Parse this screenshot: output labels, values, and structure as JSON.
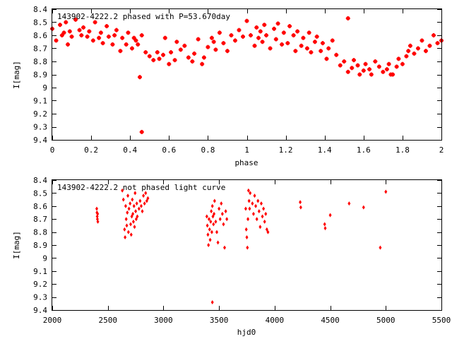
{
  "colors": {
    "marker": "#ff0000",
    "axis": "#000000",
    "background": "#ffffff"
  },
  "chart_data": [
    {
      "type": "scatter",
      "title": "143902-4222.2 phased with P=53.670day",
      "xlabel": "phase",
      "ylabel": "I[mag]",
      "xlim": [
        0,
        2
      ],
      "ylim": [
        8.4,
        9.4
      ],
      "y_inverted": true,
      "grid": false,
      "xticks": [
        0,
        0.2,
        0.4,
        0.6,
        0.8,
        1,
        1.2,
        1.4,
        1.6,
        1.8,
        2
      ],
      "xtick_labels": [
        "0",
        "0.2",
        "0.4",
        "0.6",
        "0.8",
        "1",
        "1.2",
        "1.4",
        "1.6",
        "1.8",
        "2"
      ],
      "yticks": [
        8.4,
        8.5,
        8.6,
        8.7,
        8.8,
        8.9,
        9,
        9.1,
        9.2,
        9.3,
        9.4
      ],
      "ytick_labels": [
        "8.4",
        "8.5",
        "8.6",
        "8.7",
        "8.8",
        "8.9",
        "9",
        "9.1",
        "9.2",
        "9.3",
        "9.4"
      ],
      "marker": "plus",
      "series": [
        {
          "x": [
            0.0,
            0.02,
            0.04,
            0.05,
            0.06,
            0.07,
            0.08,
            0.09,
            0.1,
            0.12,
            0.14,
            0.15,
            0.16,
            0.18,
            0.19,
            0.21,
            0.22,
            0.24,
            0.25,
            0.26,
            0.28,
            0.29,
            0.31,
            0.32,
            0.33,
            0.35,
            0.36,
            0.38,
            0.39,
            0.41,
            0.42,
            0.43,
            0.44,
            0.46,
            0.48,
            0.5,
            0.52,
            0.54,
            0.55,
            0.57,
            0.58,
            0.6,
            0.61,
            0.63,
            0.64,
            0.66,
            0.68,
            0.7,
            0.72,
            0.73,
            0.75,
            0.77,
            0.78,
            0.8,
            0.82,
            0.83,
            0.84,
            0.86,
            0.88,
            0.9,
            0.92,
            0.94,
            0.96,
            0.98,
            1.0,
            1.02,
            1.04,
            1.05,
            1.06,
            1.07,
            1.08,
            1.09,
            1.1,
            1.12,
            1.14,
            1.15,
            1.16,
            1.18,
            1.19,
            1.21,
            1.22,
            1.24,
            1.25,
            1.26,
            1.28,
            1.29,
            1.31,
            1.32,
            1.33,
            1.35,
            1.36,
            1.38,
            1.39,
            1.41,
            1.42,
            1.44,
            1.46,
            1.48,
            1.5,
            1.52,
            1.54,
            1.55,
            1.57,
            1.58,
            1.6,
            1.61,
            1.63,
            1.64,
            1.66,
            1.68,
            1.7,
            1.72,
            1.73,
            1.75,
            1.77,
            1.78,
            1.8,
            1.82,
            1.83,
            1.84,
            1.86,
            1.88,
            1.9,
            1.92,
            1.94,
            1.96,
            1.98,
            2.0,
            0.45,
            0.46,
            1.52,
            1.74
          ],
          "y": [
            8.55,
            8.64,
            8.52,
            8.6,
            8.58,
            8.5,
            8.67,
            8.57,
            8.61,
            8.48,
            8.56,
            8.6,
            8.54,
            8.61,
            8.57,
            8.64,
            8.5,
            8.62,
            8.58,
            8.66,
            8.53,
            8.61,
            8.67,
            8.6,
            8.56,
            8.72,
            8.62,
            8.67,
            8.58,
            8.7,
            8.62,
            8.64,
            8.67,
            8.6,
            8.73,
            8.76,
            8.79,
            8.73,
            8.78,
            8.75,
            8.62,
            8.82,
            8.73,
            8.79,
            8.65,
            8.71,
            8.68,
            8.77,
            8.8,
            8.74,
            8.63,
            8.82,
            8.77,
            8.69,
            8.62,
            8.65,
            8.71,
            8.58,
            8.66,
            8.72,
            8.6,
            8.64,
            8.56,
            8.61,
            8.49,
            8.6,
            8.68,
            8.54,
            8.62,
            8.57,
            8.65,
            8.52,
            8.6,
            8.7,
            8.55,
            8.63,
            8.51,
            8.67,
            8.58,
            8.66,
            8.53,
            8.6,
            8.72,
            8.57,
            8.68,
            8.62,
            8.7,
            8.58,
            8.73,
            8.65,
            8.61,
            8.72,
            8.66,
            8.78,
            8.7,
            8.64,
            8.75,
            8.83,
            8.8,
            8.88,
            8.85,
            8.79,
            8.83,
            8.9,
            8.87,
            8.82,
            8.86,
            8.9,
            8.8,
            8.84,
            8.88,
            8.86,
            8.82,
            8.9,
            8.84,
            8.78,
            8.82,
            8.76,
            8.72,
            8.68,
            8.74,
            8.7,
            8.64,
            8.72,
            8.68,
            8.6,
            8.66,
            8.64,
            8.92,
            9.34,
            8.47,
            8.9
          ]
        }
      ]
    },
    {
      "type": "scatter",
      "title": "143902-4222.2 not phased light curve",
      "xlabel": "hjd0",
      "ylabel": "I[mag]",
      "xlim": [
        2000,
        5500
      ],
      "ylim": [
        8.4,
        9.4
      ],
      "y_inverted": true,
      "grid": false,
      "xticks": [
        2000,
        2500,
        3000,
        3500,
        4000,
        4500,
        5000,
        5500
      ],
      "xtick_labels": [
        "2000",
        "2500",
        "3000",
        "3500",
        "4000",
        "4500",
        "5000",
        "5500"
      ],
      "yticks": [
        8.4,
        8.5,
        8.6,
        8.7,
        8.8,
        8.9,
        9,
        9.1,
        9.2,
        9.3,
        9.4
      ],
      "ytick_labels": [
        "8.4",
        "8.5",
        "8.6",
        "8.7",
        "8.8",
        "8.9",
        "9",
        "9.1",
        "9.2",
        "9.3",
        "9.4"
      ],
      "marker": "diamond",
      "series": [
        {
          "x": [
            2400,
            2402,
            2404,
            2406,
            2408,
            2410,
            2630,
            2640,
            2650,
            2655,
            2660,
            2665,
            2670,
            2675,
            2680,
            2685,
            2690,
            2700,
            2705,
            2710,
            2715,
            2720,
            2725,
            2730,
            2735,
            2740,
            2745,
            2750,
            2755,
            2760,
            2765,
            2780,
            2790,
            2800,
            2810,
            2820,
            2830,
            2840,
            2850,
            2860,
            3390,
            3395,
            3400,
            3405,
            3410,
            3415,
            3420,
            3425,
            3430,
            3435,
            3440,
            3445,
            3450,
            3455,
            3460,
            3470,
            3480,
            3490,
            3500,
            3510,
            3520,
            3530,
            3540,
            3550,
            3560,
            3570,
            3740,
            3745,
            3750,
            3755,
            3760,
            3765,
            3770,
            3775,
            3780,
            3800,
            3810,
            3820,
            3830,
            3840,
            3850,
            3860,
            3870,
            3880,
            3890,
            3900,
            3910,
            3920,
            3930,
            3940,
            4230,
            4235,
            4450,
            4455,
            4500,
            4670,
            4800,
            4950,
            5000,
            3440
          ],
          "y": [
            8.62,
            8.65,
            8.68,
            8.7,
            8.66,
            8.72,
            8.48,
            8.55,
            8.78,
            8.84,
            8.6,
            8.7,
            8.75,
            8.65,
            8.52,
            8.8,
            8.62,
            8.58,
            8.74,
            8.82,
            8.68,
            8.55,
            8.66,
            8.72,
            8.6,
            8.76,
            8.5,
            8.64,
            8.7,
            8.58,
            8.68,
            8.62,
            8.56,
            8.6,
            8.64,
            8.52,
            8.58,
            8.5,
            8.56,
            8.54,
            8.68,
            8.75,
            8.82,
            8.9,
            8.7,
            8.78,
            8.86,
            8.72,
            8.64,
            8.8,
            8.6,
            8.68,
            8.74,
            8.66,
            8.56,
            8.72,
            8.8,
            8.88,
            8.62,
            8.7,
            8.58,
            8.66,
            8.74,
            8.92,
            8.64,
            8.7,
            8.62,
            8.78,
            8.84,
            8.92,
            8.7,
            8.48,
            8.56,
            8.62,
            8.5,
            8.58,
            8.66,
            8.52,
            8.6,
            8.7,
            8.56,
            8.64,
            8.76,
            8.58,
            8.68,
            8.62,
            8.72,
            8.66,
            8.78,
            8.8,
            8.57,
            8.61,
            8.74,
            8.77,
            8.67,
            8.58,
            8.61,
            8.92,
            8.49,
            9.34
          ]
        }
      ]
    }
  ]
}
